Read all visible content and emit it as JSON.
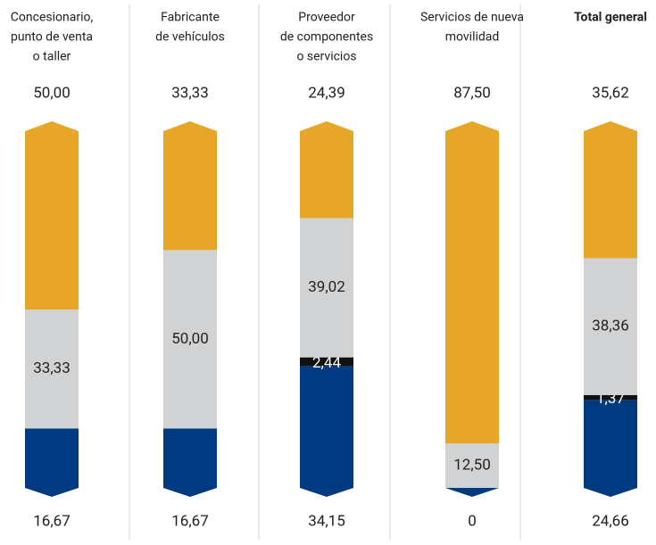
{
  "chart_data": {
    "type": "stacked-bar",
    "categories": [
      [
        "Concesionario,",
        "punto de venta",
        "o taller"
      ],
      [
        "Fabricante",
        "de vehículos"
      ],
      [
        "Proveedor",
        "de componentes",
        "o servicios"
      ],
      [
        "Servicios de nueva",
        "movilidad"
      ],
      [
        "Total general"
      ]
    ],
    "ylim": [
      0,
      100
    ],
    "series": [
      {
        "color": "#003a80",
        "values": [
          16.67,
          16.67,
          34.15,
          0,
          24.66
        ],
        "value_labels": [
          "16,67",
          "16,67",
          "34,15",
          "0",
          "24,66"
        ]
      },
      {
        "color": "#111111",
        "values": [
          0,
          0,
          2.44,
          0,
          1.37
        ],
        "value_labels": [
          null,
          null,
          "2,44",
          null,
          "1,37"
        ]
      },
      {
        "color": "#d1d2d4",
        "values": [
          33.33,
          50.0,
          39.02,
          12.5,
          38.36
        ],
        "value_labels": [
          "33,33",
          "50,00",
          "39,02",
          "12,50",
          "38,36"
        ]
      },
      {
        "color": "#e8a628",
        "values": [
          50.0,
          33.33,
          24.39,
          87.5,
          35.62
        ],
        "value_labels": [
          "50,00",
          "33,33",
          "24,39",
          "87,50",
          "35,62"
        ]
      }
    ]
  }
}
